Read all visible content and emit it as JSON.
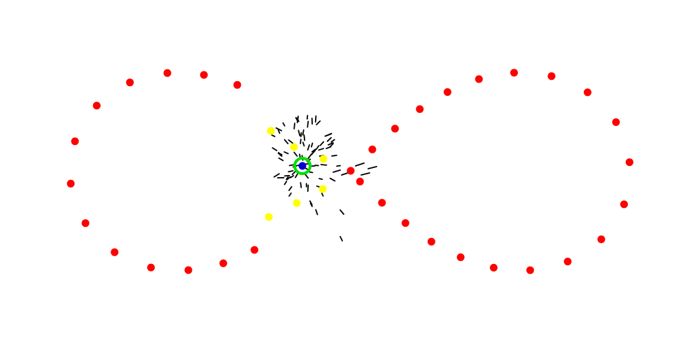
{
  "diagram": {
    "background_color": "#ffffff",
    "colors": {
      "path_dot": "#ff0000",
      "inner_dot": "#ffff00",
      "ring": "#00e000",
      "center": "#0000d0",
      "dash": "#000000"
    },
    "figure_eight_dot_count": 41,
    "inner_dot_count": 7,
    "dash_count": 80
  }
}
